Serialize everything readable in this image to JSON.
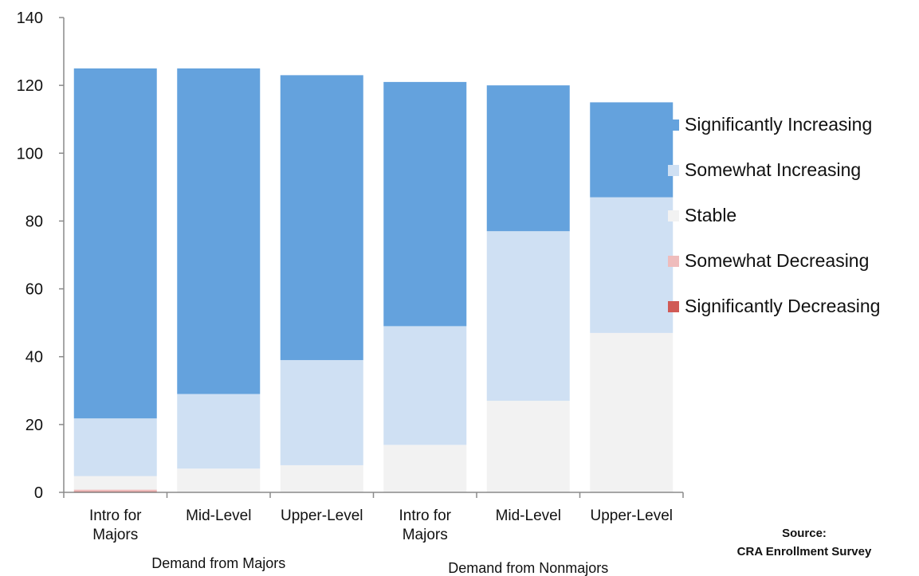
{
  "chart_data": {
    "type": "bar",
    "stacked": true,
    "groups": [
      {
        "label": "Demand from Majors",
        "categories": [
          0,
          1,
          2
        ]
      },
      {
        "label": "Demand from Nonmajors",
        "categories": [
          3,
          4,
          5
        ]
      }
    ],
    "categories": [
      "Intro for\nMajors",
      "Mid-Level",
      "Upper-Level",
      "Intro for\nMajors",
      "Mid-Level",
      "Upper-Level"
    ],
    "series": [
      {
        "name": "Significantly Decreasing",
        "color": "#d05a56",
        "values": [
          0.3,
          0,
          0,
          0,
          0,
          0
        ]
      },
      {
        "name": "Somewhat Decreasing",
        "color": "#efbcbc",
        "values": [
          0.5,
          0,
          0,
          0,
          0,
          0
        ]
      },
      {
        "name": "Stable",
        "color": "#f2f2f2",
        "values": [
          4,
          7,
          8,
          14,
          27,
          47
        ]
      },
      {
        "name": "Somewhat Increasing",
        "color": "#cfe0f3",
        "values": [
          17,
          22,
          31,
          35,
          50,
          40
        ]
      },
      {
        "name": "Significantly Increasing",
        "color": "#64a2dd",
        "values": [
          103.2,
          96,
          84,
          72,
          43,
          28
        ]
      }
    ],
    "legend_order": [
      "Significantly Increasing",
      "Somewhat Increasing",
      "Stable",
      "Somewhat Decreasing",
      "Significantly Decreasing"
    ],
    "ylim": [
      0,
      140
    ],
    "yticks": [
      "0",
      "20",
      "40",
      "60",
      "80",
      "100",
      "120",
      "140"
    ],
    "ytick_values": [
      0,
      20,
      40,
      60,
      80,
      100,
      120,
      140
    ],
    "grid": false,
    "legend_position": "right",
    "title": "",
    "xlabel": "",
    "ylabel": ""
  },
  "source": {
    "line1": "Source:",
    "line2": "CRA Enrollment Survey"
  }
}
